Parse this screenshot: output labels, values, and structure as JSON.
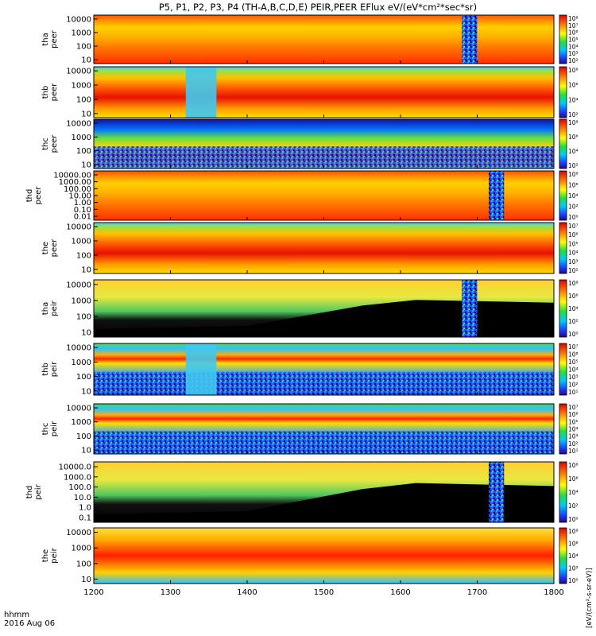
{
  "title": "P5, P1, P2, P3, P4 (TH-A,B,C,D,E) PEIR,PEER EFlux eV/(eV*cm²*sec*sr)",
  "time_axis": {
    "label_line1": "hhmm",
    "label_line2": "2016 Aug 06",
    "ticks": [
      "1200",
      "1300",
      "1400",
      "1500",
      "1600",
      "1700",
      "1800"
    ],
    "tick_values": [
      1200,
      1300,
      1400,
      1500,
      1600,
      1700,
      1800
    ]
  },
  "colorbar_unit_label": "[eV/(cm²-s-sr-eV)]",
  "chart_data": [
    {
      "type": "heatmap",
      "name_line1": "tha",
      "name_line2": "peer",
      "yticks": [
        "10000",
        "1000",
        "100",
        "10"
      ],
      "x_range": [
        1200,
        1800
      ],
      "y_range_eV": [
        7,
        30000
      ],
      "cbar_ticks": [
        "10⁸",
        "10⁷",
        "10⁶",
        "10⁵",
        "10⁴",
        "10³",
        "10²"
      ],
      "cbar_range": [
        100,
        100000000
      ],
      "features": [
        {
          "kind": "data gap (low flux)",
          "x_range": [
            1680,
            1700
          ]
        }
      ]
    },
    {
      "type": "heatmap",
      "name_line1": "thb",
      "name_line2": "peer",
      "yticks": [
        "10000",
        "1000",
        "100",
        "10"
      ],
      "x_range": [
        1200,
        1800
      ],
      "y_range_eV": [
        7,
        30000
      ],
      "cbar_ticks": [
        "10⁸",
        "10⁶",
        "10⁴",
        "10²"
      ],
      "cbar_range": [
        100,
        100000000
      ],
      "features": [
        {
          "kind": "low flux band",
          "x_range": [
            1320,
            1360
          ]
        }
      ]
    },
    {
      "type": "heatmap",
      "name_line1": "thc",
      "name_line2": "peer",
      "yticks": [
        "10000",
        "1000",
        "100",
        "10"
      ],
      "x_range": [
        1200,
        1800
      ],
      "y_range_eV": [
        7,
        30000
      ],
      "cbar_ticks": [
        "10⁸",
        "10⁶",
        "10⁴",
        "10²"
      ],
      "cbar_range": [
        100,
        100000000
      ]
    },
    {
      "type": "heatmap",
      "name_line1": "thd",
      "name_line2": "peer",
      "yticks": [
        "10000.00",
        "1000.00",
        "100.00",
        "10.00",
        "1.00",
        "0.10",
        "0.01"
      ],
      "x_range": [
        1200,
        1800
      ],
      "y_range_eV": [
        0.007,
        30000
      ],
      "cbar_ticks": [
        "10⁸",
        "10⁶",
        "10⁴",
        "10²",
        "10⁰"
      ],
      "cbar_range": [
        1,
        100000000
      ],
      "features": [
        {
          "kind": "data gap (low flux)",
          "x_range": [
            1715,
            1735
          ]
        }
      ]
    },
    {
      "type": "heatmap",
      "name_line1": "the",
      "name_line2": "peer",
      "yticks": [
        "10000",
        "1000",
        "100",
        "10"
      ],
      "x_range": [
        1200,
        1800
      ],
      "y_range_eV": [
        7,
        30000
      ],
      "cbar_ticks": [
        "10⁷",
        "10⁶",
        "10⁵",
        "10⁴",
        "10³",
        "10²"
      ],
      "cbar_range": [
        100,
        10000000
      ]
    },
    {
      "type": "heatmap",
      "name_line1": "tha",
      "name_line2": "peir",
      "yticks": [
        "10000",
        "1000",
        "100",
        "10"
      ],
      "x_range": [
        1200,
        1800
      ],
      "y_range_eV": [
        5,
        30000
      ],
      "cbar_ticks": [
        "10⁸",
        "10⁶",
        "10⁴",
        "10²",
        "10⁰"
      ],
      "cbar_range": [
        1,
        100000000
      ],
      "features": [
        {
          "kind": "data gap (low flux)",
          "x_range": [
            1680,
            1700
          ]
        }
      ]
    },
    {
      "type": "heatmap",
      "name_line1": "thb",
      "name_line2": "peir",
      "yticks": [
        "10000",
        "1000",
        "100",
        "10"
      ],
      "x_range": [
        1200,
        1800
      ],
      "y_range_eV": [
        5,
        30000
      ],
      "cbar_ticks": [
        "10⁷",
        "10⁶",
        "10⁵",
        "10⁴",
        "10³",
        "10²",
        "10¹"
      ],
      "cbar_range": [
        10,
        10000000
      ],
      "features": [
        {
          "kind": "low flux band",
          "x_range": [
            1320,
            1360
          ]
        }
      ]
    },
    {
      "type": "heatmap",
      "name_line1": "thc",
      "name_line2": "peir",
      "yticks": [
        "10000",
        "1000",
        "100",
        "10"
      ],
      "x_range": [
        1200,
        1800
      ],
      "y_range_eV": [
        5,
        30000
      ],
      "cbar_ticks": [
        "10⁷",
        "10⁶",
        "10⁵",
        "10⁴",
        "10³",
        "10²",
        "10¹"
      ],
      "cbar_range": [
        10,
        10000000
      ]
    },
    {
      "type": "heatmap",
      "name_line1": "thd",
      "name_line2": "peir",
      "yticks": [
        "10000.0",
        "1000.0",
        "100.0",
        "10.0",
        "1.0",
        "0.1"
      ],
      "x_range": [
        1200,
        1800
      ],
      "y_range_eV": [
        0.05,
        30000
      ],
      "cbar_ticks": [
        "10⁸",
        "10⁶",
        "10⁴",
        "10²",
        "10⁰"
      ],
      "cbar_range": [
        1,
        100000000
      ],
      "features": [
        {
          "kind": "data gap (low flux)",
          "x_range": [
            1715,
            1735
          ]
        }
      ]
    },
    {
      "type": "heatmap",
      "name_line1": "the",
      "name_line2": "peir",
      "yticks": [
        "10000",
        "1000",
        "100",
        "10"
      ],
      "x_range": [
        1200,
        1800
      ],
      "y_range_eV": [
        5,
        30000
      ],
      "cbar_ticks": [
        "10⁸",
        "10⁶",
        "10⁴",
        "10²",
        "10⁰"
      ],
      "cbar_range": [
        1,
        100000000
      ]
    }
  ]
}
